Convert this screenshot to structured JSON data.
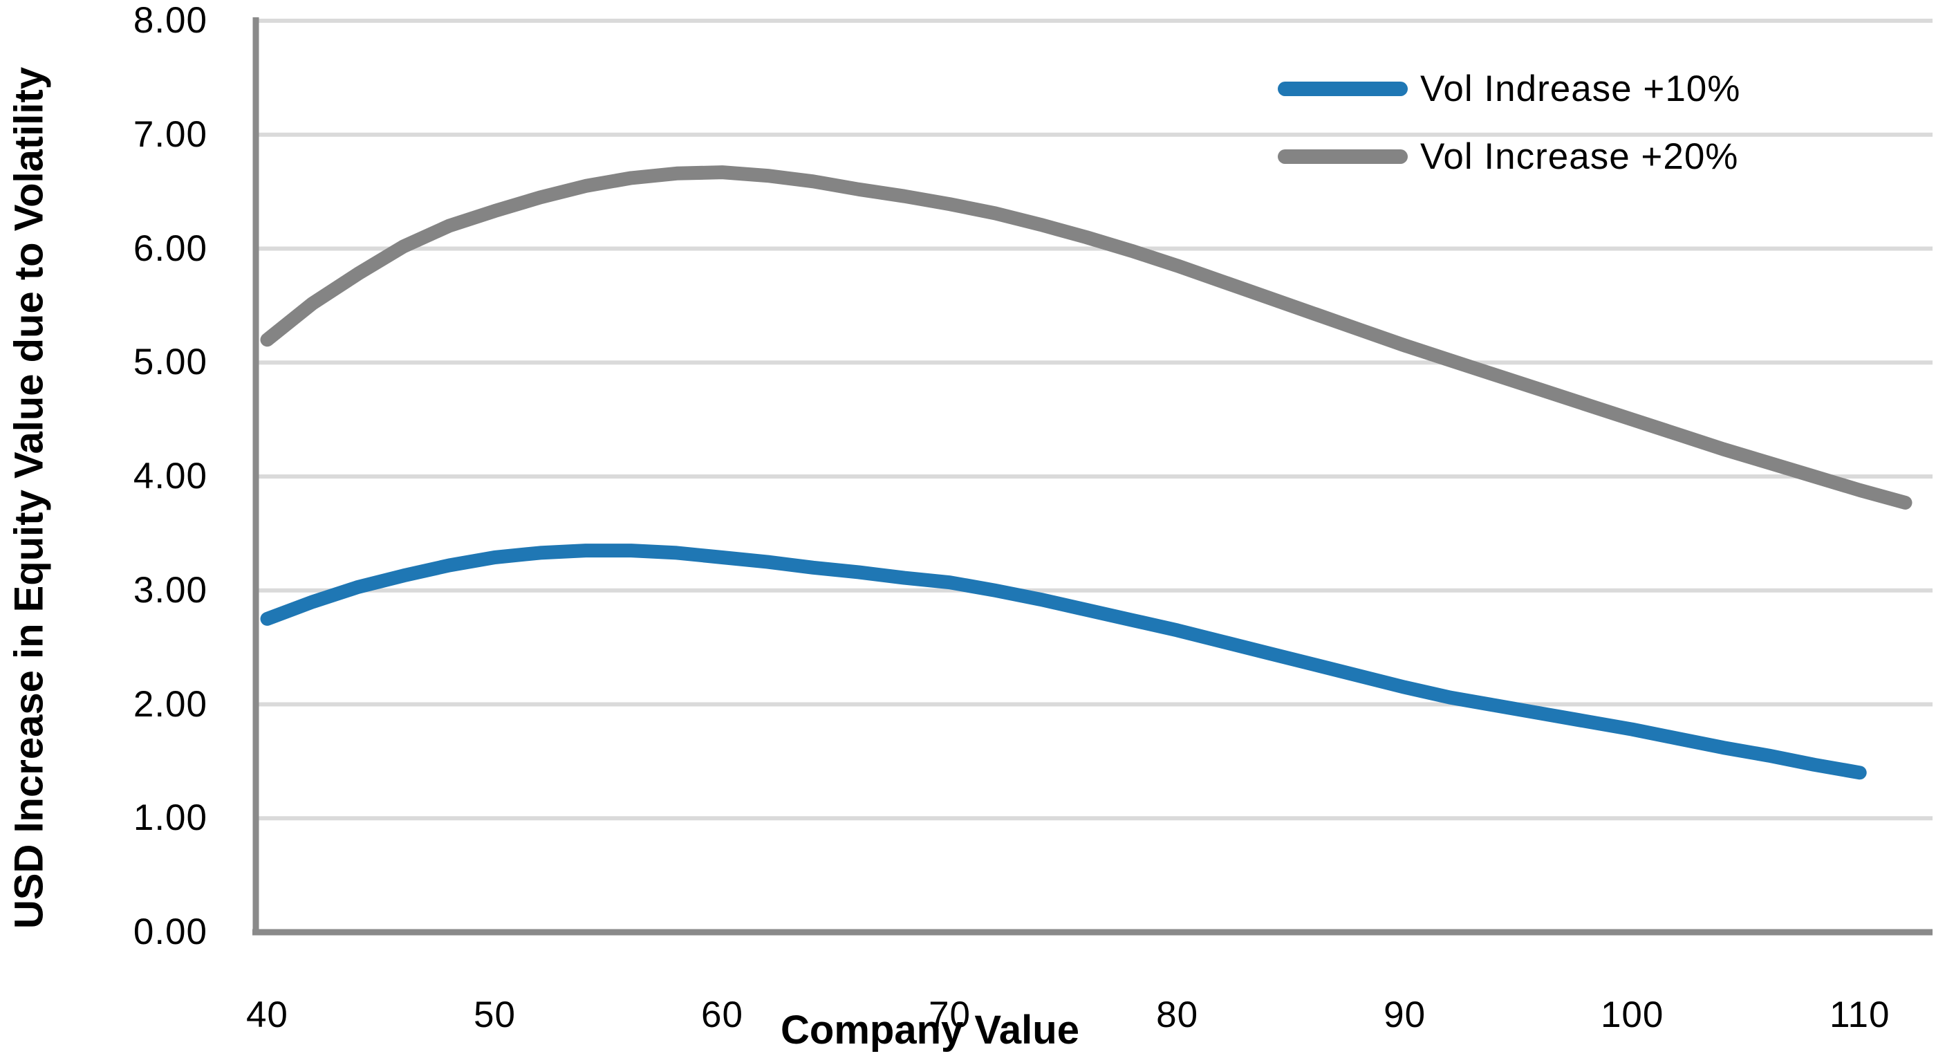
{
  "chart": {
    "y_axis": {
      "title": "USD Increase in Equity Value due to Volatility",
      "tick_labels": [
        "0.00",
        "1.00",
        "2.00",
        "3.00",
        "4.00",
        "5.00",
        "6.00",
        "7.00",
        "8.00"
      ],
      "tick_values": [
        0,
        1,
        2,
        3,
        4,
        5,
        6,
        7,
        8
      ]
    },
    "x_axis": {
      "title": "Company Value",
      "tick_labels": [
        "40",
        "50",
        "60",
        "70",
        "80",
        "90",
        "100",
        "110"
      ],
      "tick_values": [
        40,
        50,
        60,
        70,
        80,
        90,
        100,
        110
      ]
    },
    "legend": {
      "items": [
        {
          "label": "Vol Indrease +10%",
          "color": "#1F77B4"
        },
        {
          "label": "Vol Increase +20%",
          "color": "#848484"
        }
      ]
    },
    "colors": {
      "gridline": "#DADADA",
      "axis_line": "#8A8A8A",
      "text": "#000000",
      "background": "#FFFFFF"
    }
  },
  "chart_data": {
    "type": "line",
    "title": "",
    "xlabel": "Company Value",
    "ylabel": "USD Increase in Equity Value due to Volatility",
    "xlim": [
      39.5,
      113.2
    ],
    "ylim": [
      0,
      8
    ],
    "grid": true,
    "legend_position": "top-right",
    "series": [
      {
        "name": "Vol Indrease +10%",
        "color": "#1F77B4",
        "x": [
          40,
          42,
          44,
          46,
          48,
          50,
          52,
          54,
          56,
          58,
          60,
          62,
          64,
          66,
          68,
          70,
          72,
          74,
          76,
          78,
          80,
          82,
          84,
          86,
          88,
          90,
          92,
          94,
          96,
          98,
          100,
          102,
          104,
          106,
          108,
          110
        ],
        "y": [
          2.75,
          2.9,
          3.03,
          3.13,
          3.22,
          3.29,
          3.33,
          3.35,
          3.35,
          3.33,
          3.29,
          3.25,
          3.2,
          3.16,
          3.11,
          3.07,
          3.0,
          2.92,
          2.83,
          2.74,
          2.65,
          2.55,
          2.45,
          2.35,
          2.25,
          2.15,
          2.06,
          1.99,
          1.92,
          1.85,
          1.78,
          1.7,
          1.62,
          1.55,
          1.47,
          1.4
        ]
      },
      {
        "name": "Vol Increase +20%",
        "color": "#848484",
        "x": [
          40,
          42,
          44,
          46,
          48,
          50,
          52,
          54,
          56,
          58,
          60,
          62,
          64,
          66,
          68,
          70,
          72,
          74,
          76,
          78,
          80,
          82,
          84,
          86,
          88,
          90,
          92,
          94,
          96,
          98,
          100,
          102,
          104,
          106,
          108,
          110,
          112
        ],
        "y": [
          5.2,
          5.52,
          5.78,
          6.02,
          6.2,
          6.33,
          6.45,
          6.55,
          6.62,
          6.66,
          6.67,
          6.64,
          6.59,
          6.52,
          6.46,
          6.39,
          6.31,
          6.21,
          6.1,
          5.98,
          5.85,
          5.71,
          5.57,
          5.43,
          5.29,
          5.15,
          5.02,
          4.89,
          4.76,
          4.63,
          4.5,
          4.37,
          4.24,
          4.12,
          4.0,
          3.88,
          3.77
        ]
      }
    ]
  }
}
